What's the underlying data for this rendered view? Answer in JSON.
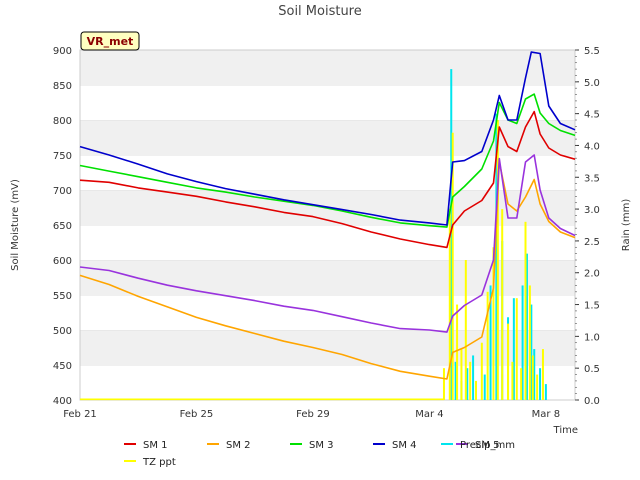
{
  "chart_data": {
    "type": "line",
    "title": "Soil Moisture",
    "badge": "VR_met",
    "xlabel": "Time",
    "ylabel": "Soil Moisture (mV)",
    "y2label": "Rain (mm)",
    "xlim": [
      0,
      17
    ],
    "ylim": [
      400,
      900
    ],
    "y2lim": [
      0,
      5.5
    ],
    "x_ticks": [
      {
        "x": 0,
        "label": "Feb 21"
      },
      {
        "x": 4,
        "label": "Feb 25"
      },
      {
        "x": 8,
        "label": "Feb 29"
      },
      {
        "x": 12,
        "label": "Mar 4"
      },
      {
        "x": 16,
        "label": "Mar 8"
      }
    ],
    "y_ticks": [
      400,
      450,
      500,
      550,
      600,
      650,
      700,
      750,
      800,
      850,
      900
    ],
    "y2_ticks": [
      "0.0",
      "0.5",
      "1.0",
      "1.5",
      "2.0",
      "2.5",
      "3.0",
      "3.5",
      "4.0",
      "4.5",
      "5.0",
      "5.5"
    ],
    "series": [
      {
        "name": "SM 1",
        "color": "#e00000",
        "axis": "left",
        "x": [
          0,
          1,
          2,
          3,
          4,
          5,
          6,
          7,
          8,
          9,
          10,
          11,
          12,
          12.6,
          12.8,
          13.2,
          13.8,
          14.2,
          14.4,
          14.7,
          15.0,
          15.3,
          15.6,
          15.8,
          16.1,
          16.5,
          17
        ],
        "y": [
          714,
          711,
          703,
          697,
          691,
          683,
          676,
          668,
          662,
          652,
          640,
          630,
          622,
          618,
          650,
          670,
          685,
          710,
          790,
          762,
          755,
          790,
          812,
          780,
          760,
          750,
          744
        ]
      },
      {
        "name": "SM 2",
        "color": "#ffa500",
        "axis": "left",
        "x": [
          0,
          1,
          2,
          3,
          4,
          5,
          6,
          7,
          8,
          9,
          10,
          11,
          12,
          12.6,
          12.8,
          13.2,
          13.8,
          14.2,
          14.4,
          14.7,
          15.0,
          15.3,
          15.6,
          15.8,
          16.1,
          16.5,
          17
        ],
        "y": [
          578,
          565,
          548,
          533,
          518,
          506,
          495,
          484,
          475,
          465,
          452,
          441,
          434,
          430,
          468,
          475,
          490,
          560,
          740,
          680,
          670,
          690,
          715,
          680,
          655,
          640,
          632
        ]
      },
      {
        "name": "SM 3",
        "color": "#00e000",
        "axis": "left",
        "x": [
          0,
          1,
          2,
          3,
          4,
          5,
          6,
          7,
          8,
          9,
          10,
          11,
          12,
          12.6,
          12.8,
          13.2,
          13.8,
          14.2,
          14.4,
          14.7,
          15.0,
          15.3,
          15.6,
          15.8,
          16.1,
          16.5,
          17
        ],
        "y": [
          735,
          727,
          719,
          711,
          703,
          697,
          690,
          684,
          678,
          670,
          661,
          653,
          649,
          647,
          690,
          705,
          730,
          770,
          825,
          800,
          795,
          830,
          837,
          810,
          795,
          785,
          778
        ]
      },
      {
        "name": "SM 4",
        "color": "#0000cc",
        "axis": "left",
        "x": [
          0,
          1,
          2,
          3,
          4,
          5,
          6,
          7,
          8,
          9,
          10,
          11,
          12,
          12.6,
          12.8,
          13.2,
          13.8,
          14.2,
          14.4,
          14.7,
          15.0,
          15.3,
          15.5,
          15.8,
          16.1,
          16.5,
          17
        ],
        "y": [
          762,
          750,
          737,
          723,
          712,
          702,
          694,
          686,
          679,
          672,
          665,
          657,
          653,
          650,
          740,
          742,
          755,
          800,
          835,
          800,
          800,
          860,
          897,
          895,
          820,
          795,
          786
        ]
      },
      {
        "name": "SM 5",
        "color": "#9933dd",
        "axis": "left",
        "x": [
          0,
          1,
          2,
          3,
          4,
          5,
          6,
          7,
          8,
          9,
          10,
          11,
          12,
          12.6,
          12.8,
          13.2,
          13.8,
          14.2,
          14.4,
          14.7,
          15.0,
          15.3,
          15.6,
          15.8,
          16.1,
          16.5,
          17
        ],
        "y": [
          590,
          585,
          574,
          564,
          556,
          549,
          542,
          534,
          528,
          519,
          510,
          502,
          500,
          497,
          520,
          535,
          550,
          600,
          745,
          660,
          660,
          740,
          750,
          700,
          660,
          645,
          635
        ]
      },
      {
        "name": "Precip_mm",
        "color": "#00e5ee",
        "axis": "right",
        "style": "bars",
        "x": [
          12.75,
          12.9,
          13.1,
          13.3,
          13.5,
          13.9,
          14.1,
          14.3,
          14.5,
          14.7,
          14.9,
          15.2,
          15.35,
          15.5,
          15.6,
          15.8,
          16.0
        ],
        "y": [
          5.2,
          0.6,
          0.3,
          0.5,
          0.7,
          0.4,
          1.8,
          4.5,
          2.5,
          1.3,
          1.6,
          1.8,
          2.3,
          1.5,
          0.8,
          0.5,
          0.25
        ]
      },
      {
        "name": "TZ ppt",
        "color": "#ffff00",
        "axis": "right",
        "style": "bars",
        "x": [
          12.5,
          12.7,
          12.8,
          12.95,
          13.1,
          13.25,
          13.4,
          13.6,
          13.8,
          14.0,
          14.2,
          14.35,
          14.5,
          14.7,
          14.85,
          15.0,
          15.15,
          15.3,
          15.45,
          15.55,
          15.7,
          15.9
        ],
        "y": [
          0.5,
          3.0,
          4.2,
          1.5,
          0.8,
          2.2,
          0.6,
          0.3,
          0.9,
          1.7,
          2.4,
          4.4,
          3.0,
          1.2,
          0.6,
          1.6,
          0.5,
          2.8,
          1.8,
          0.7,
          0.4,
          0.8
        ]
      },
      {
        "name": "TZ ppt line",
        "color": "#ffff00",
        "axis": "left",
        "style": "baseline",
        "x": [
          0,
          12.5
        ],
        "y": [
          401,
          401
        ]
      }
    ],
    "legend": [
      "SM 1",
      "SM 2",
      "SM 3",
      "SM 4",
      "SM 5",
      "Precip_mm",
      "TZ ppt"
    ],
    "legend_colors": [
      "#e00000",
      "#ffa500",
      "#00e000",
      "#0000cc",
      "#9933dd",
      "#00e5ee",
      "#ffff00"
    ]
  }
}
